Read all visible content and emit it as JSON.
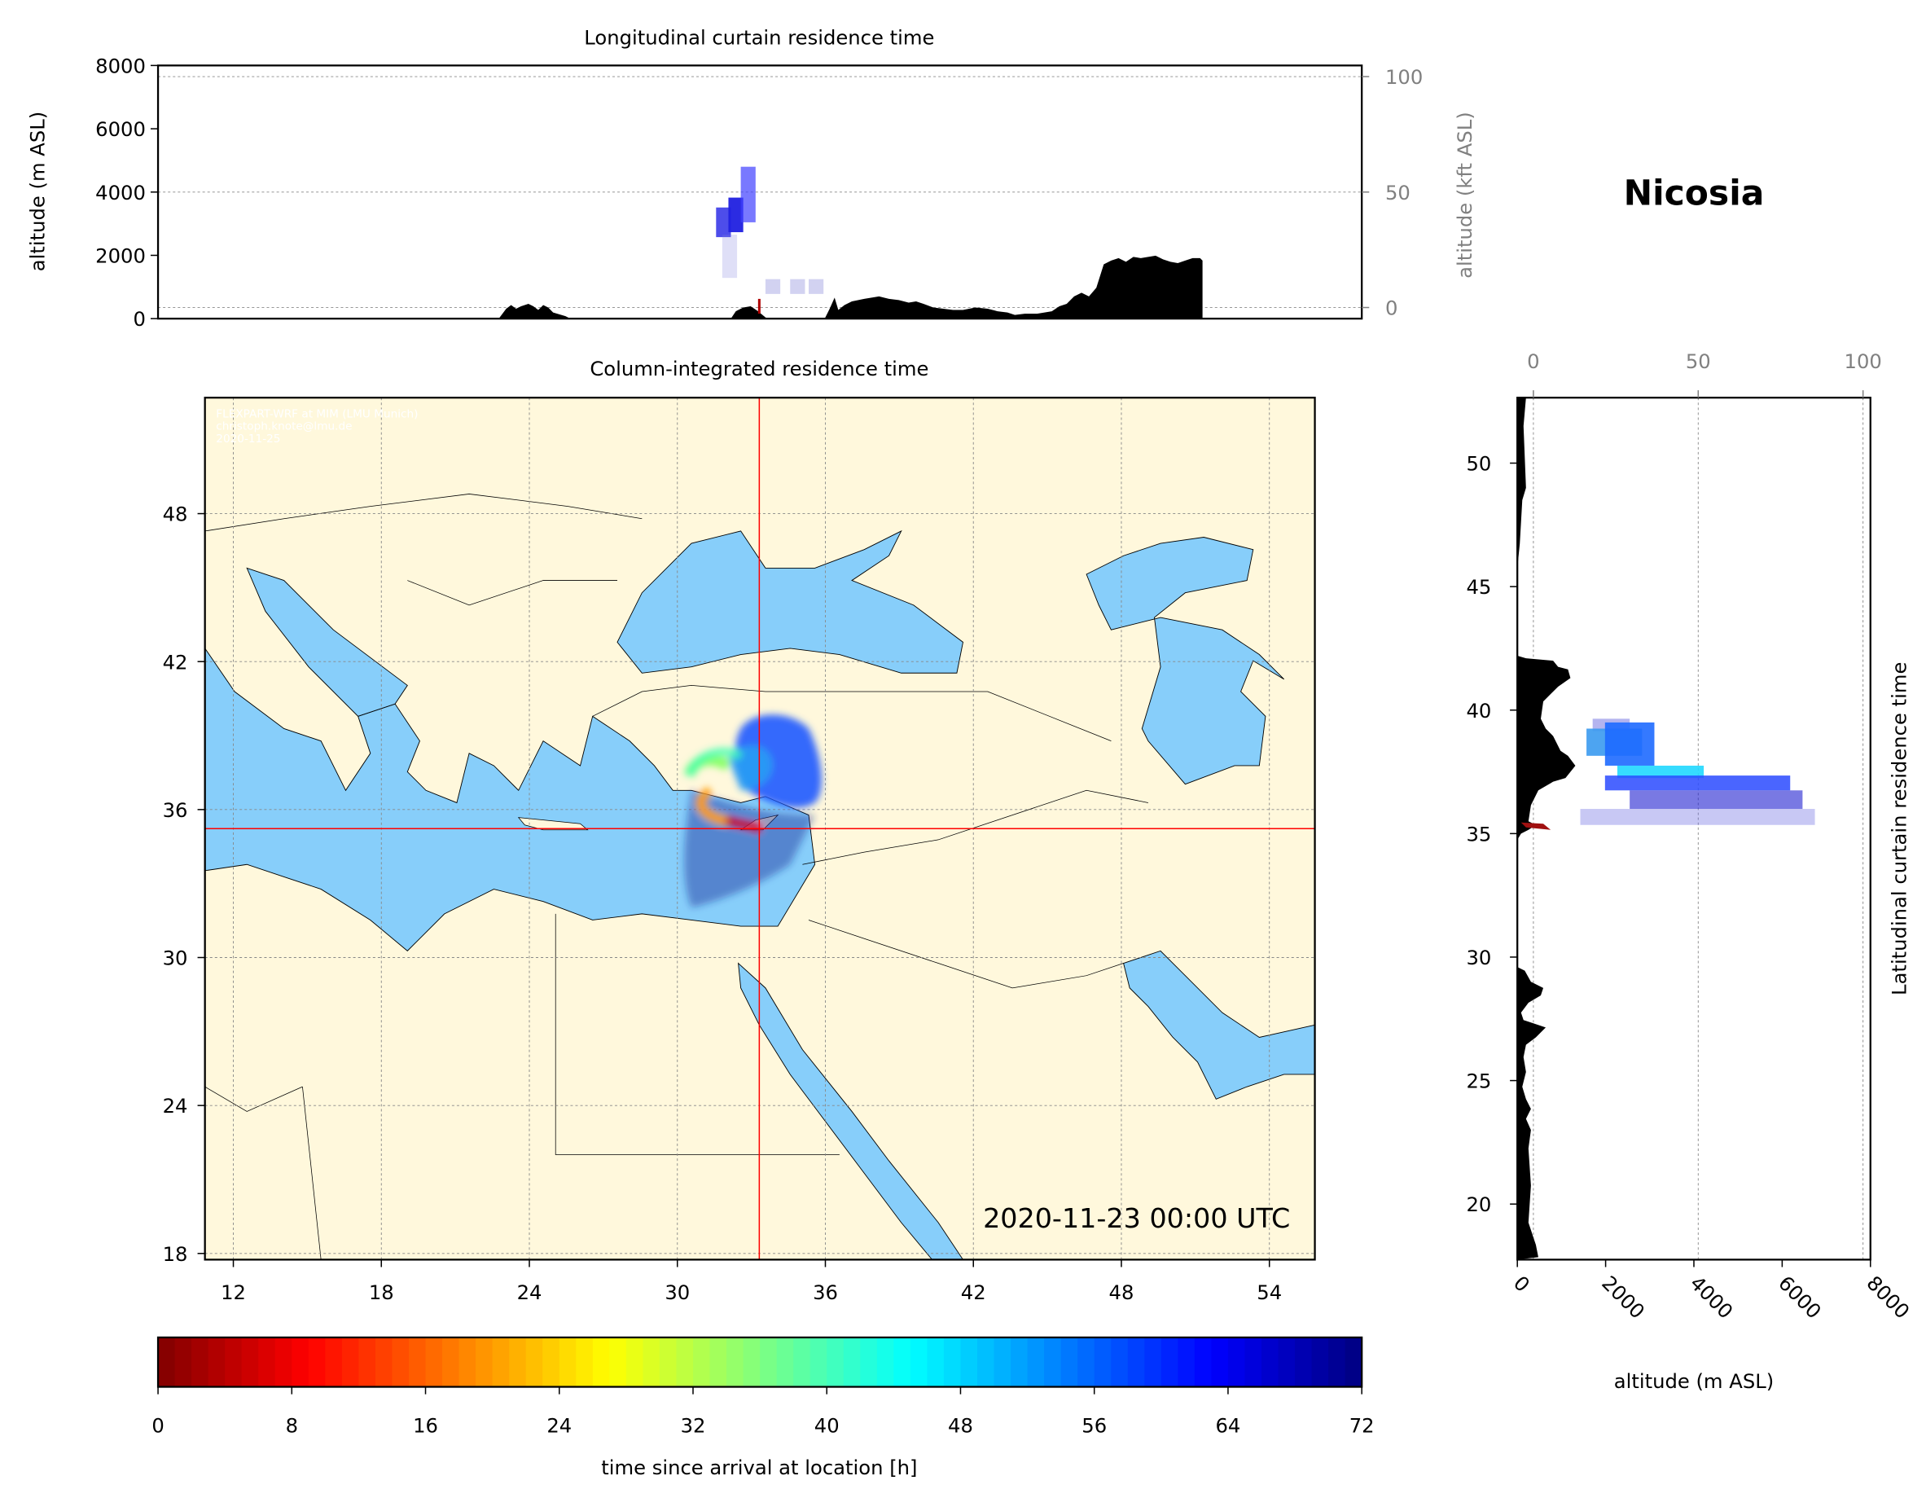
{
  "station": "Nicosia",
  "timestamp": "2020-11-23 00:00 UTC",
  "watermark": [
    "FLEXPART-WRF at MIM (LMU Munich)",
    "christoph.knote@lmu.de",
    "2020-11-25"
  ],
  "colors": {
    "land": "#FFF8DC",
    "sea": "#87CEFA",
    "terrain": "#000000",
    "crosshair": "#FF0000"
  },
  "chart_data": [
    {
      "type": "area",
      "title": "Longitudinal curtain residence time",
      "ylabel": "altitude (m ASL)",
      "ylim": [
        0,
        8000
      ],
      "yticks": [
        "0",
        "2000",
        "4000",
        "6000",
        "8000"
      ],
      "y2label": "altitude (kft ASL)",
      "y2ticks": [
        "0",
        "50",
        "100"
      ],
      "grid": true
    },
    {
      "type": "heatmap",
      "title": "Column-integrated residence time",
      "xticks": [
        "12",
        "18",
        "24",
        "30",
        "36",
        "42",
        "48",
        "54"
      ],
      "yticks": [
        "18",
        "24",
        "30",
        "36",
        "42",
        "48"
      ],
      "xlim": [
        10.85,
        55.8
      ],
      "ylim": [
        17.75,
        52.7
      ],
      "location": {
        "lon": 33.36,
        "lat": 35.17
      },
      "grid": true
    },
    {
      "type": "area",
      "ylabel": "Latitudinal curtain residence time",
      "xlabel": "altitude (m ASL)",
      "xticks": [
        "0",
        "2000",
        "4000",
        "6000",
        "8000"
      ],
      "x2ticks": [
        "0",
        "50",
        "100"
      ],
      "yticks": [
        "20",
        "25",
        "30",
        "35",
        "40",
        "45",
        "50"
      ],
      "xlim": [
        0,
        8000
      ],
      "grid": true
    }
  ],
  "colorbar": {
    "label": "time since arrival at location [h]",
    "colormap": "jet_r",
    "range": [
      0,
      72
    ],
    "ticks": [
      "0",
      "8",
      "16",
      "24",
      "32",
      "40",
      "48",
      "56",
      "64",
      "72"
    ]
  }
}
